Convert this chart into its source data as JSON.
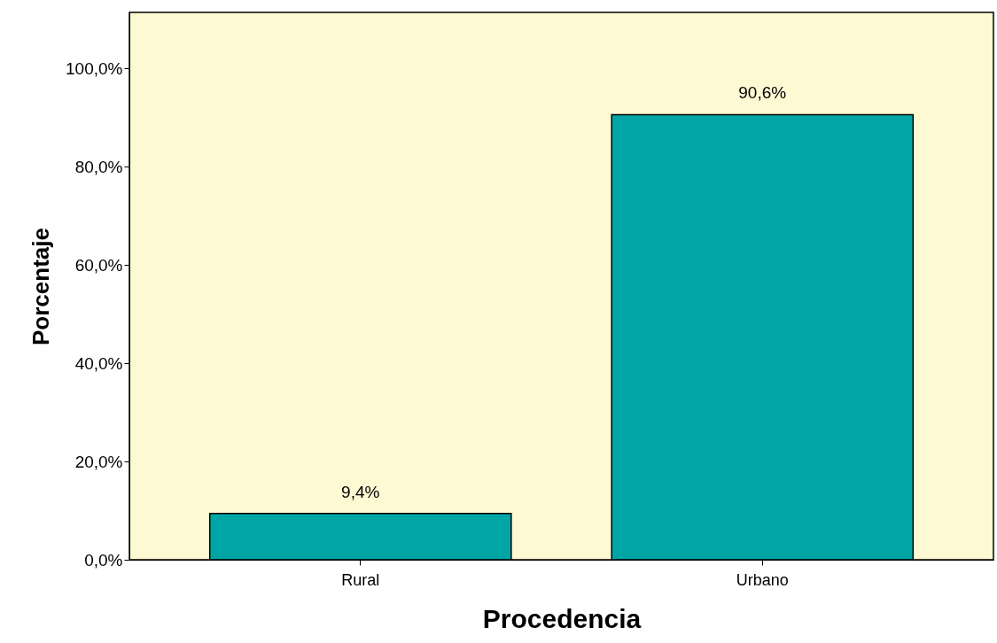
{
  "chart_data": {
    "type": "bar",
    "xlabel": "Procedencia",
    "ylabel": "Porcentaje",
    "categories": [
      "Rural",
      "Urbano"
    ],
    "series": [
      {
        "color": "#00a6a6",
        "values": [
          9.4,
          90.6
        ],
        "value_labels": [
          "9,4%",
          "90,6%"
        ]
      }
    ],
    "ylim": [
      0,
      111.4
    ],
    "yticks": [
      {
        "value": 0,
        "label": "0,0%"
      },
      {
        "value": 20,
        "label": "20,0%"
      },
      {
        "value": 40,
        "label": "40,0%"
      },
      {
        "value": 60,
        "label": "60,0%"
      },
      {
        "value": 80,
        "label": "80,0%"
      },
      {
        "value": 100,
        "label": "100,0%"
      }
    ],
    "grid": false
  }
}
